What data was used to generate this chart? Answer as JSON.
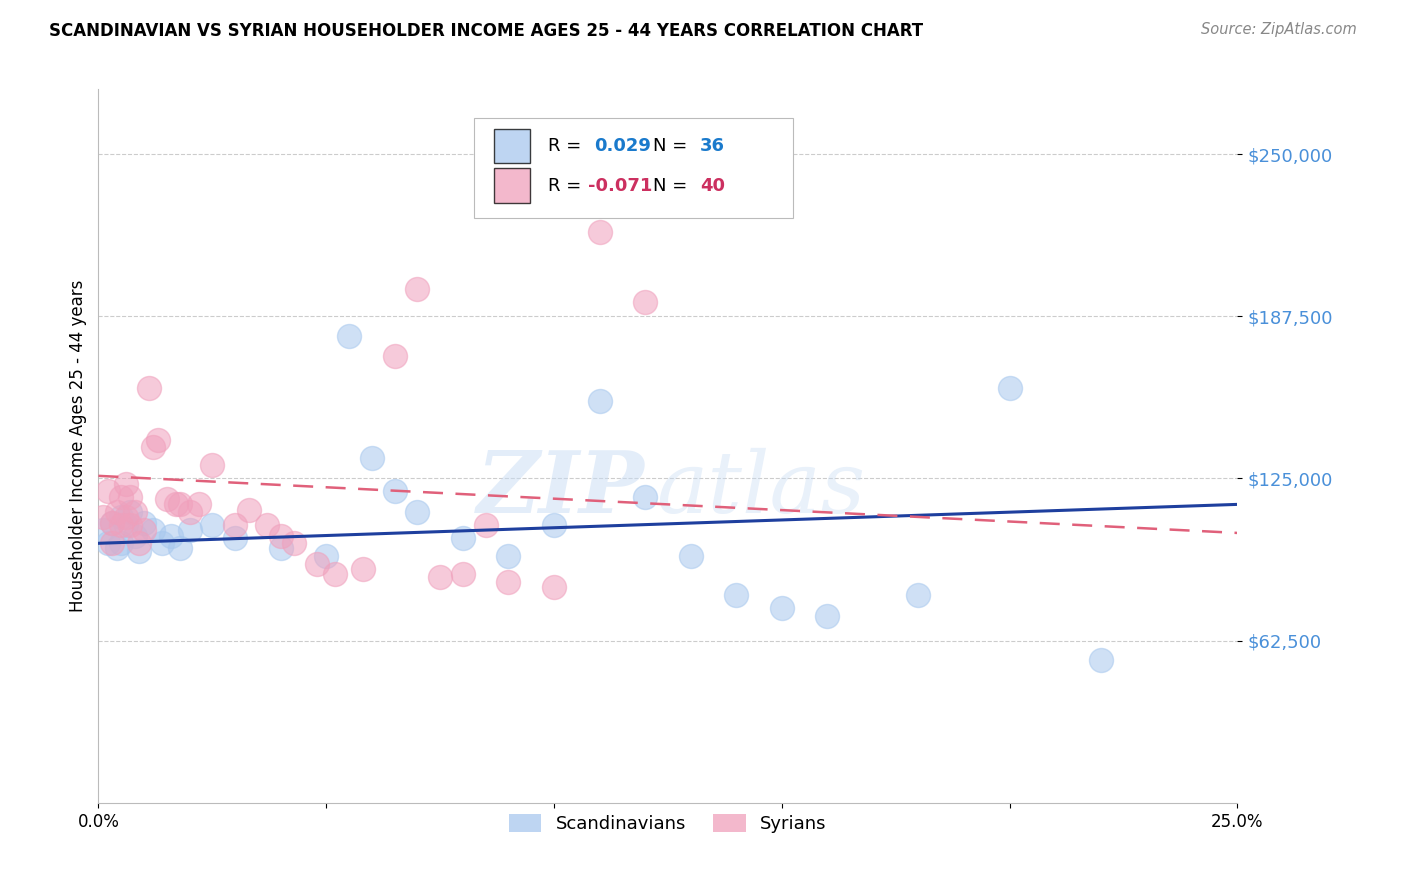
{
  "title": "SCANDINAVIAN VS SYRIAN HOUSEHOLDER INCOME AGES 25 - 44 YEARS CORRELATION CHART",
  "source": "Source: ZipAtlas.com",
  "ylabel": "Householder Income Ages 25 - 44 years",
  "xmin": 0.0,
  "xmax": 0.25,
  "ymin": 0,
  "ymax": 275000,
  "scand_color": "#A8C8EE",
  "syrian_color": "#F0A0BC",
  "scand_line_color": "#1E3F9E",
  "syrian_line_color": "#E0607A",
  "watermark": "ZIPatlas",
  "scand_x": [
    0.001,
    0.002,
    0.003,
    0.004,
    0.005,
    0.005,
    0.006,
    0.007,
    0.008,
    0.009,
    0.01,
    0.012,
    0.014,
    0.016,
    0.018,
    0.02,
    0.025,
    0.03,
    0.04,
    0.05,
    0.055,
    0.06,
    0.065,
    0.07,
    0.08,
    0.09,
    0.1,
    0.11,
    0.12,
    0.13,
    0.14,
    0.15,
    0.16,
    0.18,
    0.2,
    0.22
  ],
  "scand_y": [
    105000,
    100000,
    108000,
    98000,
    110000,
    100000,
    107000,
    112000,
    103000,
    97000,
    108000,
    105000,
    100000,
    103000,
    98000,
    105000,
    107000,
    102000,
    98000,
    95000,
    180000,
    133000,
    120000,
    112000,
    102000,
    95000,
    107000,
    155000,
    118000,
    95000,
    80000,
    75000,
    72000,
    80000,
    160000,
    55000
  ],
  "syrian_x": [
    0.001,
    0.002,
    0.003,
    0.003,
    0.004,
    0.005,
    0.005,
    0.006,
    0.006,
    0.007,
    0.007,
    0.008,
    0.009,
    0.01,
    0.011,
    0.012,
    0.013,
    0.015,
    0.017,
    0.018,
    0.02,
    0.022,
    0.025,
    0.03,
    0.033,
    0.037,
    0.04,
    0.043,
    0.048,
    0.052,
    0.058,
    0.065,
    0.07,
    0.075,
    0.08,
    0.085,
    0.09,
    0.1,
    0.11,
    0.12
  ],
  "syrian_y": [
    110000,
    120000,
    100000,
    108000,
    112000,
    118000,
    107000,
    123000,
    110000,
    118000,
    107000,
    112000,
    100000,
    105000,
    160000,
    137000,
    140000,
    117000,
    115000,
    115000,
    112000,
    115000,
    130000,
    107000,
    113000,
    107000,
    103000,
    100000,
    92000,
    88000,
    90000,
    172000,
    198000,
    87000,
    88000,
    107000,
    85000,
    83000,
    220000,
    193000
  ]
}
